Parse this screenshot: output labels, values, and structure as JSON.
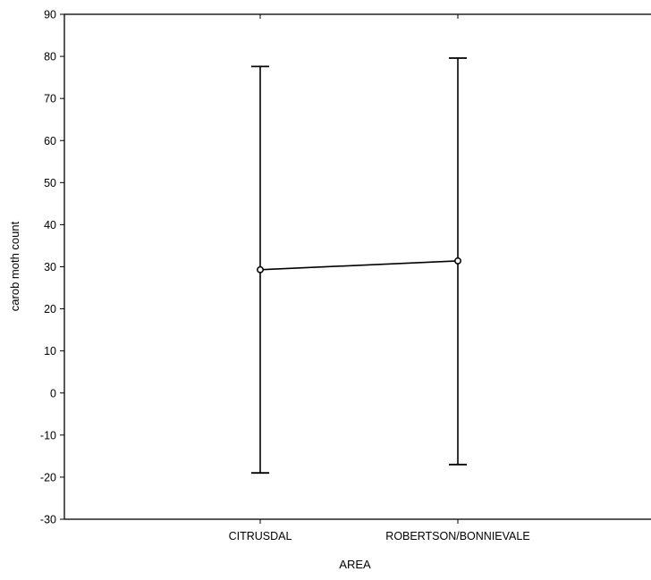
{
  "chart_data": {
    "type": "line",
    "title": "",
    "xlabel": "AREA",
    "ylabel": "carob moth count",
    "categories": [
      "CITRUSDAL",
      "ROBERTSON/BONNIEVALE"
    ],
    "series": [
      {
        "means": [
          29.3,
          31.4
        ],
        "lower": [
          -19,
          -17
        ],
        "upper": [
          77.6,
          79.6
        ]
      }
    ],
    "ylim": [
      -30,
      90
    ],
    "yticks": [
      "-30",
      "-20",
      "-10",
      "0",
      "10",
      "20",
      "30",
      "40",
      "50",
      "60",
      "70",
      "80",
      "90"
    ],
    "grid": false,
    "legend": "none",
    "colors": {
      "line": "#000000",
      "axis": "#000000",
      "background": "#ffffff"
    }
  }
}
